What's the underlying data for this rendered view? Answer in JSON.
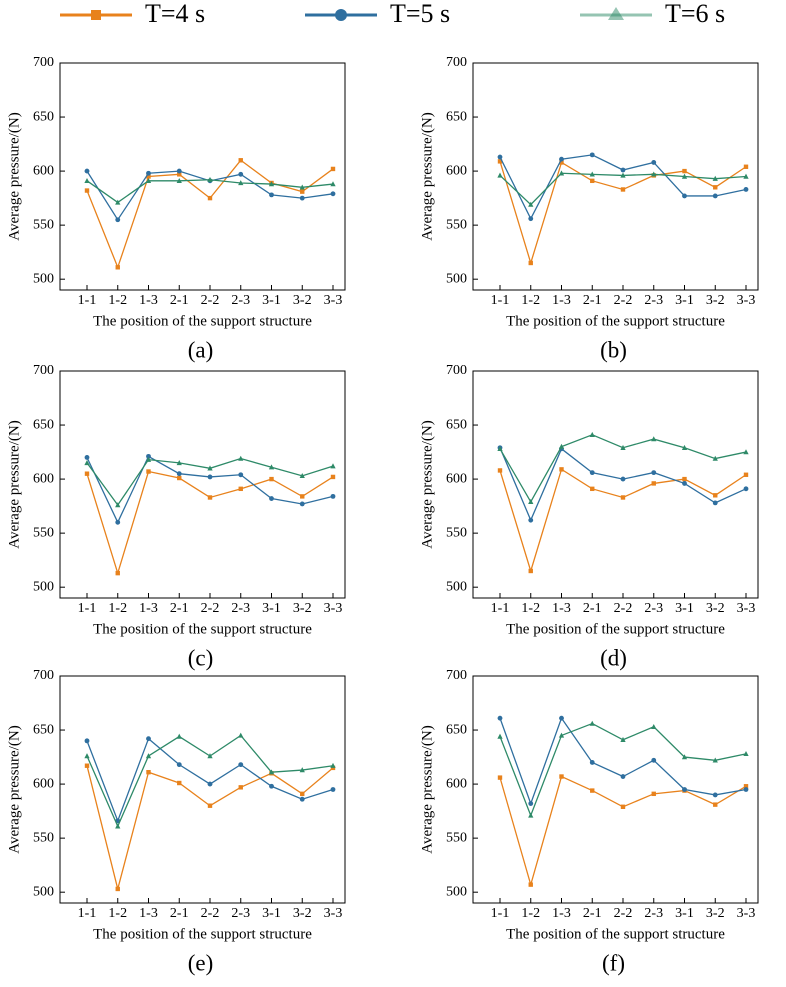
{
  "chart_data": [
    {
      "type": "line",
      "label": "(a)",
      "xlabel": "The position of the support structure",
      "ylabel": "Average pressure/(N)",
      "categories": [
        "1-1",
        "1-2",
        "1-3",
        "2-1",
        "2-2",
        "2-3",
        "3-1",
        "3-2",
        "3-3"
      ],
      "ylim": [
        490,
        700
      ],
      "yticks": [
        500,
        550,
        600,
        650,
        700
      ],
      "grid": false,
      "series": [
        {
          "name": "T=4 s",
          "color": "#e8821c",
          "marker": "square",
          "values": [
            582,
            511,
            595,
            597,
            575,
            610,
            589,
            581,
            602
          ]
        },
        {
          "name": "T=5 s",
          "color": "#2f6f9f",
          "marker": "circle",
          "values": [
            600,
            555,
            598,
            600,
            591,
            597,
            578,
            575,
            579
          ]
        },
        {
          "name": "T=6 s",
          "color": "#2e8a68",
          "marker": "triangle",
          "values": [
            591,
            571,
            591,
            591,
            592,
            589,
            588,
            585,
            588
          ]
        }
      ]
    },
    {
      "type": "line",
      "label": "(b)",
      "xlabel": "The position of the support structure",
      "ylabel": "Average pressure/(N)",
      "categories": [
        "1-1",
        "1-2",
        "1-3",
        "2-1",
        "2-2",
        "2-3",
        "3-1",
        "3-2",
        "3-3"
      ],
      "ylim": [
        490,
        700
      ],
      "yticks": [
        500,
        550,
        600,
        650,
        700
      ],
      "grid": false,
      "series": [
        {
          "color": "#e8821c",
          "marker": "square",
          "values": [
            609,
            515,
            608,
            591,
            583,
            596,
            600,
            585,
            604
          ]
        },
        {
          "color": "#2f6f9f",
          "marker": "circle",
          "values": [
            613,
            556,
            611,
            615,
            601,
            608,
            577,
            577,
            583
          ]
        },
        {
          "color": "#2e8a68",
          "marker": "triangle",
          "values": [
            596,
            569,
            598,
            597,
            596,
            597,
            595,
            593,
            595
          ]
        }
      ]
    },
    {
      "type": "line",
      "label": "(c)",
      "xlabel": "The position of the support structure",
      "ylabel": "Average pressure/(N)",
      "categories": [
        "1-1",
        "1-2",
        "1-3",
        "2-1",
        "2-2",
        "2-3",
        "3-1",
        "3-2",
        "3-3"
      ],
      "ylim": [
        490,
        700
      ],
      "yticks": [
        500,
        550,
        600,
        650,
        700
      ],
      "grid": false,
      "series": [
        {
          "color": "#e8821c",
          "marker": "square",
          "values": [
            605,
            513,
            607,
            601,
            583,
            591,
            600,
            584,
            602
          ]
        },
        {
          "color": "#2f6f9f",
          "marker": "circle",
          "values": [
            620,
            560,
            621,
            605,
            602,
            604,
            582,
            577,
            584
          ]
        },
        {
          "color": "#2e8a68",
          "marker": "triangle",
          "values": [
            615,
            576,
            618,
            615,
            610,
            619,
            611,
            603,
            612
          ]
        }
      ]
    },
    {
      "type": "line",
      "label": "(d)",
      "xlabel": "The position of the support structure",
      "ylabel": "Average pressure/(N)",
      "categories": [
        "1-1",
        "1-2",
        "1-3",
        "2-1",
        "2-2",
        "2-3",
        "3-1",
        "3-2",
        "3-3"
      ],
      "ylim": [
        490,
        700
      ],
      "yticks": [
        500,
        550,
        600,
        650,
        700
      ],
      "grid": false,
      "series": [
        {
          "color": "#e8821c",
          "marker": "square",
          "values": [
            608,
            515,
            609,
            591,
            583,
            596,
            600,
            585,
            604
          ]
        },
        {
          "color": "#2f6f9f",
          "marker": "circle",
          "values": [
            629,
            562,
            628,
            606,
            600,
            606,
            596,
            578,
            591
          ]
        },
        {
          "color": "#2e8a68",
          "marker": "triangle",
          "values": [
            628,
            579,
            630,
            641,
            629,
            637,
            629,
            619,
            625
          ]
        }
      ]
    },
    {
      "type": "line",
      "label": "(e)",
      "xlabel": "The position of the support structure",
      "ylabel": "Average pressure/(N)",
      "categories": [
        "1-1",
        "1-2",
        "1-3",
        "2-1",
        "2-2",
        "2-3",
        "3-1",
        "3-2",
        "3-3"
      ],
      "ylim": [
        490,
        700
      ],
      "yticks": [
        500,
        550,
        600,
        650,
        700
      ],
      "grid": false,
      "series": [
        {
          "color": "#e8821c",
          "marker": "square",
          "values": [
            617,
            503,
            611,
            601,
            580,
            597,
            610,
            591,
            615
          ]
        },
        {
          "color": "#2f6f9f",
          "marker": "circle",
          "values": [
            640,
            566,
            642,
            618,
            600,
            618,
            598,
            586,
            595
          ]
        },
        {
          "color": "#2e8a68",
          "marker": "triangle",
          "values": [
            626,
            561,
            626,
            644,
            626,
            645,
            611,
            613,
            617
          ]
        }
      ]
    },
    {
      "type": "line",
      "label": "(f)",
      "xlabel": "The position of the support structure",
      "ylabel": "Average pressure/(N)",
      "categories": [
        "1-1",
        "1-2",
        "1-3",
        "2-1",
        "2-2",
        "2-3",
        "3-1",
        "3-2",
        "3-3"
      ],
      "ylim": [
        490,
        700
      ],
      "yticks": [
        500,
        550,
        600,
        650,
        700
      ],
      "grid": false,
      "series": [
        {
          "color": "#e8821c",
          "marker": "square",
          "values": [
            606,
            507,
            607,
            594,
            579,
            591,
            594,
            581,
            598
          ]
        },
        {
          "color": "#2f6f9f",
          "marker": "circle",
          "values": [
            661,
            582,
            661,
            620,
            607,
            622,
            595,
            590,
            595
          ]
        },
        {
          "color": "#2e8a68",
          "marker": "triangle",
          "values": [
            644,
            571,
            645,
            656,
            641,
            653,
            625,
            622,
            628
          ]
        }
      ]
    }
  ]
}
